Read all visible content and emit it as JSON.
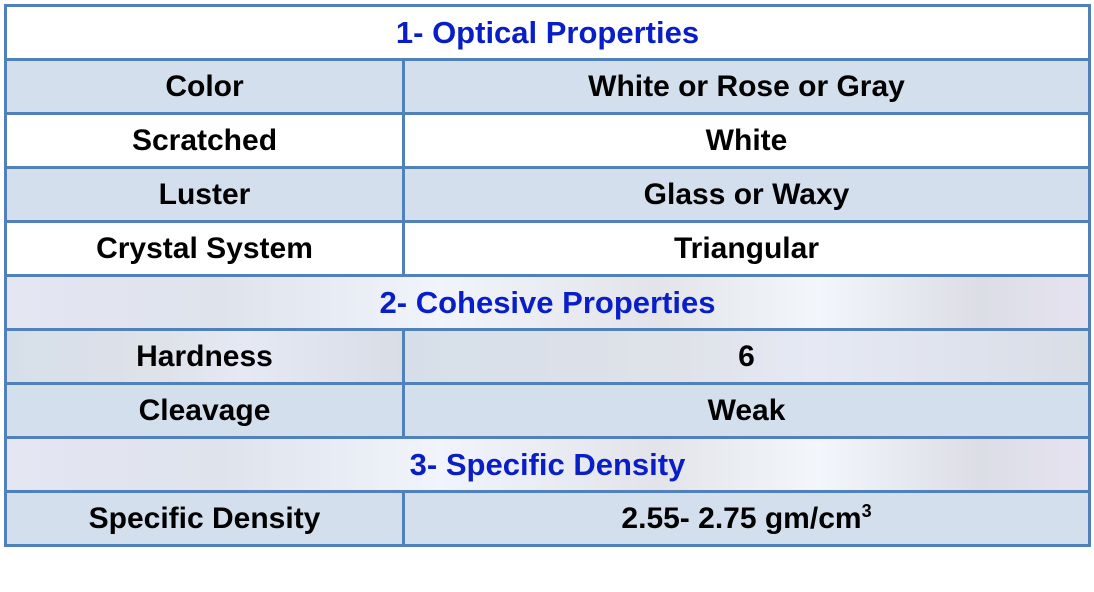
{
  "sections": [
    {
      "title": "1- Optical Properties",
      "rows": [
        {
          "label": "Color",
          "value": "White or Rose or Gray"
        },
        {
          "label": "Scratched",
          "value": "White"
        },
        {
          "label": "Luster",
          "value": "Glass or Waxy"
        },
        {
          "label": "Crystal System",
          "value": "Triangular"
        }
      ]
    },
    {
      "title": "2- Cohesive Properties",
      "rows": [
        {
          "label": "Hardness",
          "value": "6"
        },
        {
          "label": "Cleavage",
          "value": "Weak"
        }
      ]
    },
    {
      "title": "3- Specific Density",
      "rows": [
        {
          "label": "Specific Density",
          "value": "2.55- 2.75 gm/cm",
          "value_sup": "3"
        }
      ]
    }
  ],
  "colors": {
    "border": "#5181bb",
    "section_title": "#0a1ec8",
    "row_fill": "#d3dfed"
  }
}
